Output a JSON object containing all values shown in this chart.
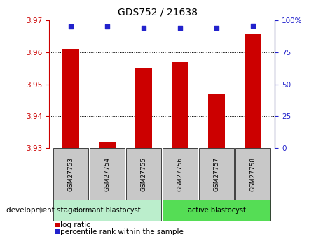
{
  "title": "GDS752 / 21638",
  "categories": [
    "GSM27753",
    "GSM27754",
    "GSM27755",
    "GSM27756",
    "GSM27757",
    "GSM27758"
  ],
  "log_ratio": [
    3.961,
    3.932,
    3.955,
    3.957,
    3.947,
    3.966
  ],
  "percentile_rank": [
    95,
    95,
    94,
    94,
    94,
    96
  ],
  "ylim_left": [
    3.93,
    3.97
  ],
  "ylim_right": [
    0,
    100
  ],
  "yticks_left": [
    3.93,
    3.94,
    3.95,
    3.96,
    3.97
  ],
  "yticks_right": [
    0,
    25,
    50,
    75,
    100
  ],
  "ytick_right_labels": [
    "0",
    "25",
    "50",
    "75",
    "100%"
  ],
  "bar_color": "#cc0000",
  "dot_color": "#2222cc",
  "bar_base": 3.93,
  "group1_label": "dormant blastocyst",
  "group2_label": "active blastocyst",
  "group1_indices": [
    0,
    1,
    2
  ],
  "group2_indices": [
    3,
    4,
    5
  ],
  "group1_color": "#bbeecc",
  "group2_color": "#55dd55",
  "sample_box_color": "#c8c8c8",
  "legend_log_ratio_label": "log ratio",
  "legend_percentile_label": "percentile rank within the sample",
  "dev_stage_label": "development stage",
  "title_fontsize": 10,
  "tick_fontsize": 7.5,
  "bar_width": 0.45
}
